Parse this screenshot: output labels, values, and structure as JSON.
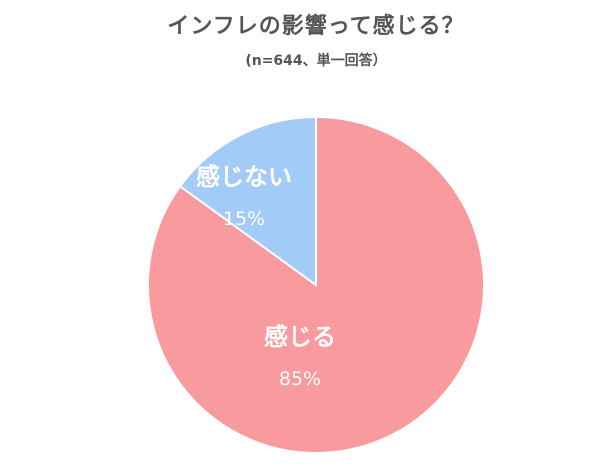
{
  "chart_data": {
    "type": "pie",
    "title": "インフレの影響って感じる？",
    "subtitle": "(n=644、単一回答）",
    "categories": [
      "感じる",
      "感じない"
    ],
    "values": [
      85,
      15
    ],
    "value_labels": [
      "85%",
      "15%"
    ],
    "colors": [
      "#F89A9E",
      "#A3CBF7"
    ],
    "legend": "none"
  }
}
